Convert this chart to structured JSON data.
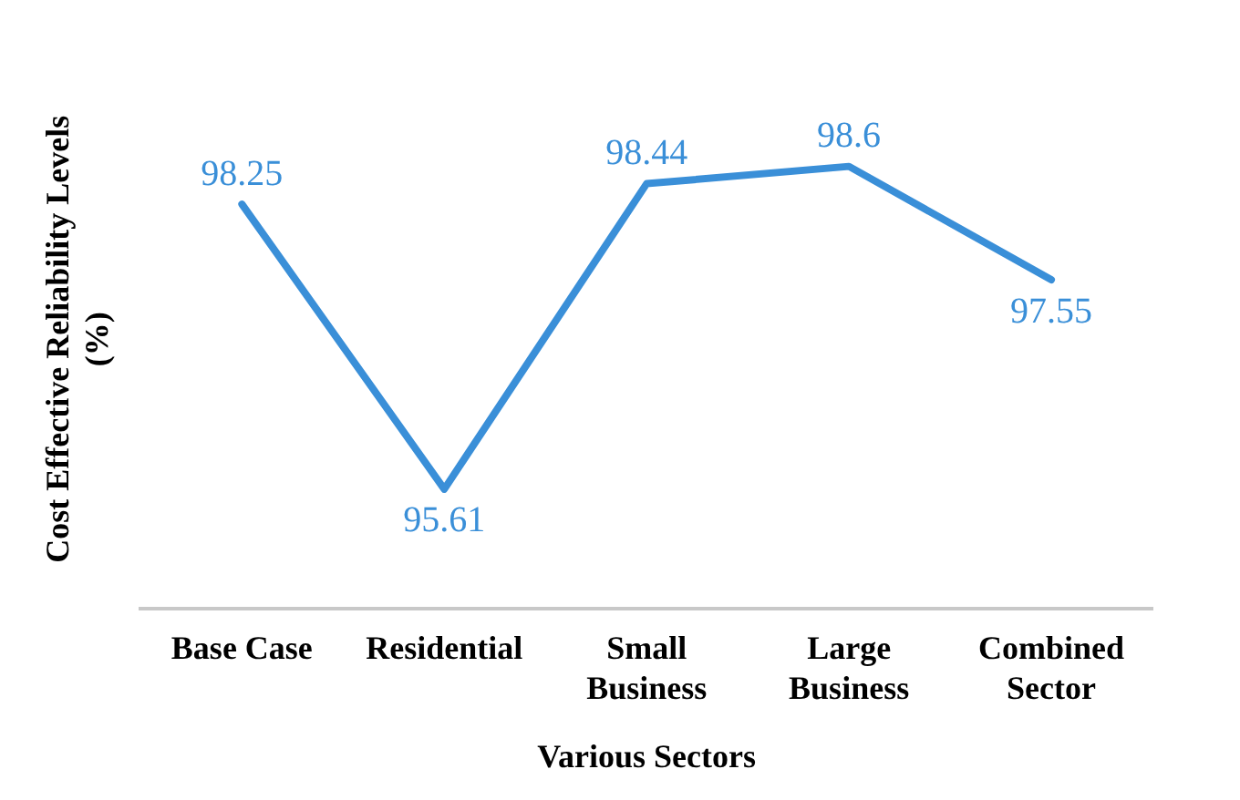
{
  "chart_data": {
    "type": "line",
    "xlabel": "Various Sectors",
    "ylabel": "Cost Effective Reliability Levels (%)",
    "categories": [
      "Base Case",
      "Residential",
      "Small Business",
      "Large Business",
      "Combined Sector"
    ],
    "series": [
      {
        "color": "#3a8fd8",
        "values": [
          98.25,
          95.61,
          98.44,
          98.6,
          97.55
        ]
      }
    ],
    "data_labels": true,
    "grid": false,
    "legend": false,
    "marker": "none",
    "line_style": "solid"
  }
}
